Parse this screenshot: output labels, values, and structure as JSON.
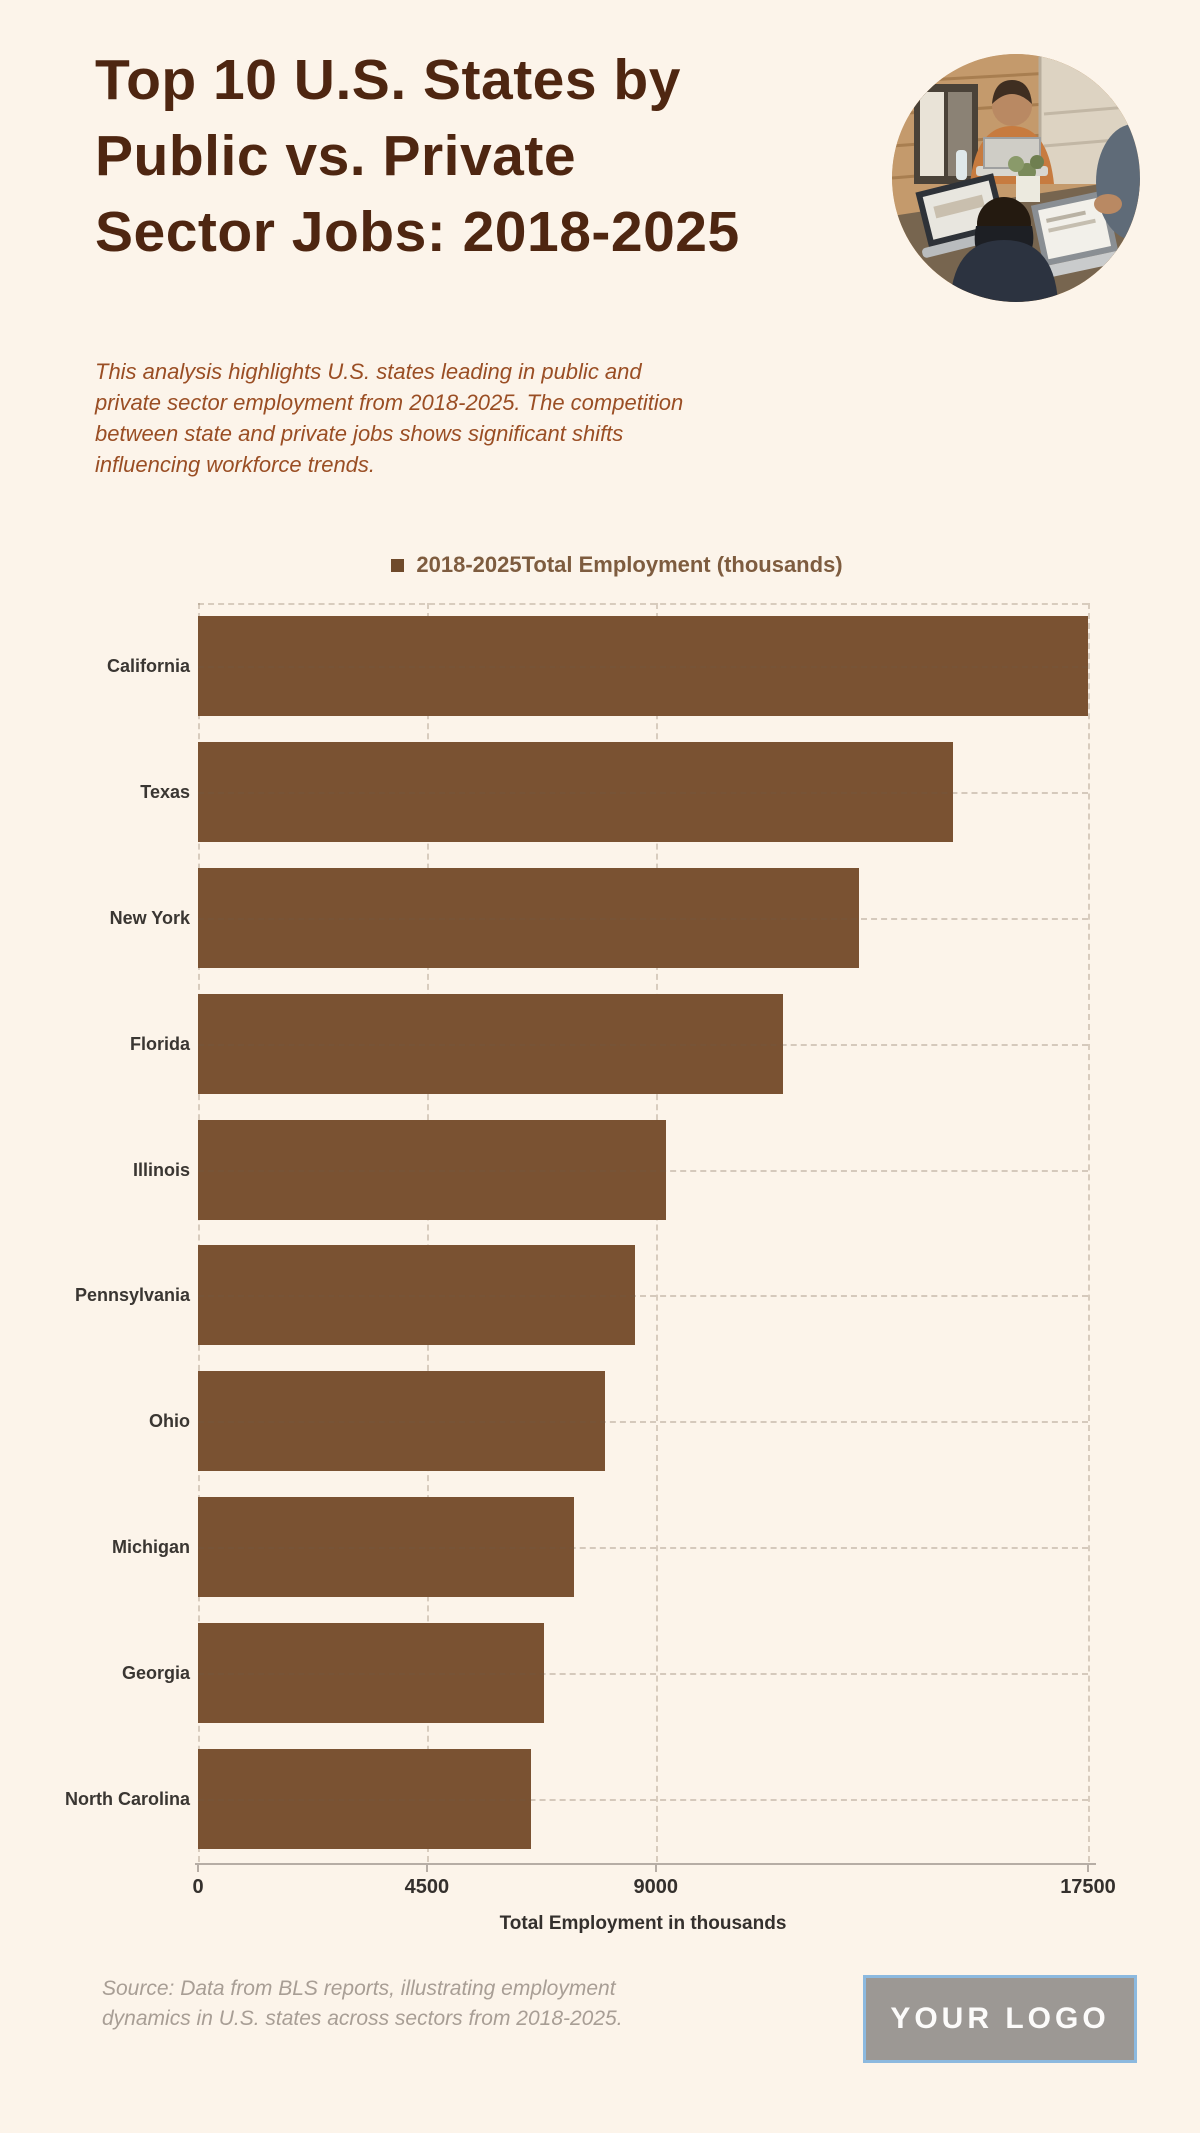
{
  "header": {
    "title_lines": [
      "Top 10 U.S. States by",
      "Public vs. Private",
      "Sector Jobs: 2018-2025"
    ],
    "description_lines": [
      "This analysis highlights U.S. states leading in public and",
      "private sector employment from 2018-2025. The competition",
      "between state and private jobs shows significant shifts",
      "influencing workforce trends."
    ]
  },
  "chart_data": {
    "type": "bar",
    "orientation": "horizontal",
    "legend_label": "2018-2025Total Employment (thousands)",
    "categories": [
      "California",
      "Texas",
      "New York",
      "Florida",
      "Illinois",
      "Pennsylvania",
      "Ohio",
      "Michigan",
      "Georgia",
      "North Carolina"
    ],
    "values": [
      17500,
      14850,
      13000,
      11500,
      9200,
      8600,
      8000,
      7400,
      6800,
      6550
    ],
    "xlabel": "Total Employment in thousands",
    "xticks": [
      0,
      4500,
      9000,
      17500
    ],
    "xlim": [
      0,
      17500
    ],
    "bar_color": "#7a5232",
    "legend_marker_color": "#6f4a2b",
    "grid": "dashed",
    "legend_position": "top-center"
  },
  "footer": {
    "source_lines": [
      "Source: Data from BLS reports, illustrating employment",
      "dynamics in U.S. states across sectors from 2018-2025."
    ],
    "logo_text": "YOUR LOGO"
  },
  "colors": {
    "background": "#fcf4ea",
    "title": "#4e2611",
    "description": "#9a4e24",
    "bar": "#7a5232",
    "legend_text": "#7e5c3f",
    "axis_text": "#34302d",
    "source_text": "#a89e95",
    "logo_background": "#9c9894",
    "logo_border": "#8cb9df",
    "logo_text": "#fcfbfa"
  }
}
